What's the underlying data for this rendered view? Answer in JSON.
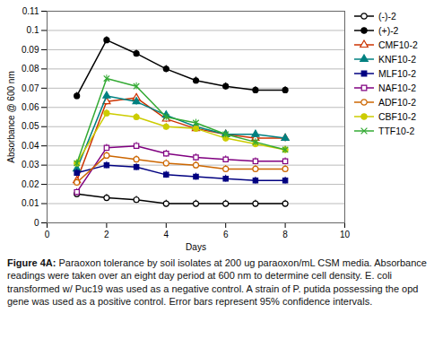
{
  "chart_data": {
    "type": "line",
    "xlabel": "Days",
    "ylabel": "Absorbance @ 600 nm",
    "caption": "Figure 4A: Paraoxon tolerance by soil isolates at 200 ug paraoxon/mL CSM media. Absorbance readings were taken over an eight day period at 600 nm to determine cell density. E. coli transformed w/ Puc19 was used as a negative control. A strain of P. putida possessing the opd gene was used as a positive control. Error bars represent 95% confidence intervals.",
    "x": [
      1,
      2,
      3,
      4,
      5,
      6,
      7,
      8
    ],
    "series": [
      {
        "name": "(-)-2",
        "color": "#000000",
        "marker": "circle-open",
        "values": [
          0.015,
          0.013,
          0.012,
          0.01,
          0.01,
          0.01,
          0.01,
          0.01
        ],
        "yerr": 0.0018
      },
      {
        "name": "(+)-2",
        "color": "#000000",
        "marker": "circle",
        "values": [
          0.066,
          0.095,
          0.088,
          0.08,
          0.074,
          0.071,
          0.069,
          0.069
        ],
        "yerr": 0.0018
      },
      {
        "name": "CMF10-2",
        "color": "#cc3300",
        "marker": "triangle-open",
        "values": [
          0.022,
          0.063,
          0.065,
          0.054,
          0.049,
          0.046,
          0.044,
          0.044
        ],
        "yerr": 0.0018
      },
      {
        "name": "KNF10-2",
        "color": "#008080",
        "marker": "triangle",
        "values": [
          0.028,
          0.066,
          0.063,
          0.056,
          0.05,
          0.046,
          0.046,
          0.044
        ],
        "yerr": 0.0018
      },
      {
        "name": "MLF10-2",
        "color": "#000080",
        "marker": "square",
        "values": [
          0.026,
          0.03,
          0.029,
          0.025,
          0.024,
          0.023,
          0.022,
          0.022
        ],
        "yerr": 0.0018
      },
      {
        "name": "NAF10-2",
        "color": "#800080",
        "marker": "square-open",
        "values": [
          0.016,
          0.039,
          0.04,
          0.036,
          0.034,
          0.033,
          0.032,
          0.032
        ],
        "yerr": 0.0018
      },
      {
        "name": "ADF10-2",
        "color": "#cc6600",
        "marker": "circle-open",
        "values": [
          0.021,
          0.035,
          0.033,
          0.031,
          0.03,
          0.028,
          0.028,
          0.028
        ],
        "yerr": 0.0018
      },
      {
        "name": "CBF10-2",
        "color": "#cccc00",
        "marker": "circle",
        "values": [
          0.031,
          0.057,
          0.055,
          0.05,
          0.049,
          0.044,
          0.041,
          0.038
        ],
        "yerr": 0.0018
      },
      {
        "name": "TTF10-2",
        "color": "#33aa33",
        "marker": "times",
        "values": [
          0.031,
          0.075,
          0.071,
          0.055,
          0.052,
          0.046,
          0.042,
          0.038
        ],
        "yerr": 0.0018
      }
    ],
    "xlim": [
      0,
      10
    ],
    "xticks": [
      0,
      2,
      4,
      6,
      8,
      10
    ],
    "ylim": [
      0,
      0.11
    ],
    "yticks": [
      0,
      0.01,
      0.02,
      0.03,
      0.04,
      0.05,
      0.06,
      0.07,
      0.08,
      0.09,
      0.1,
      0.11
    ],
    "grid": true,
    "legend": "right"
  }
}
